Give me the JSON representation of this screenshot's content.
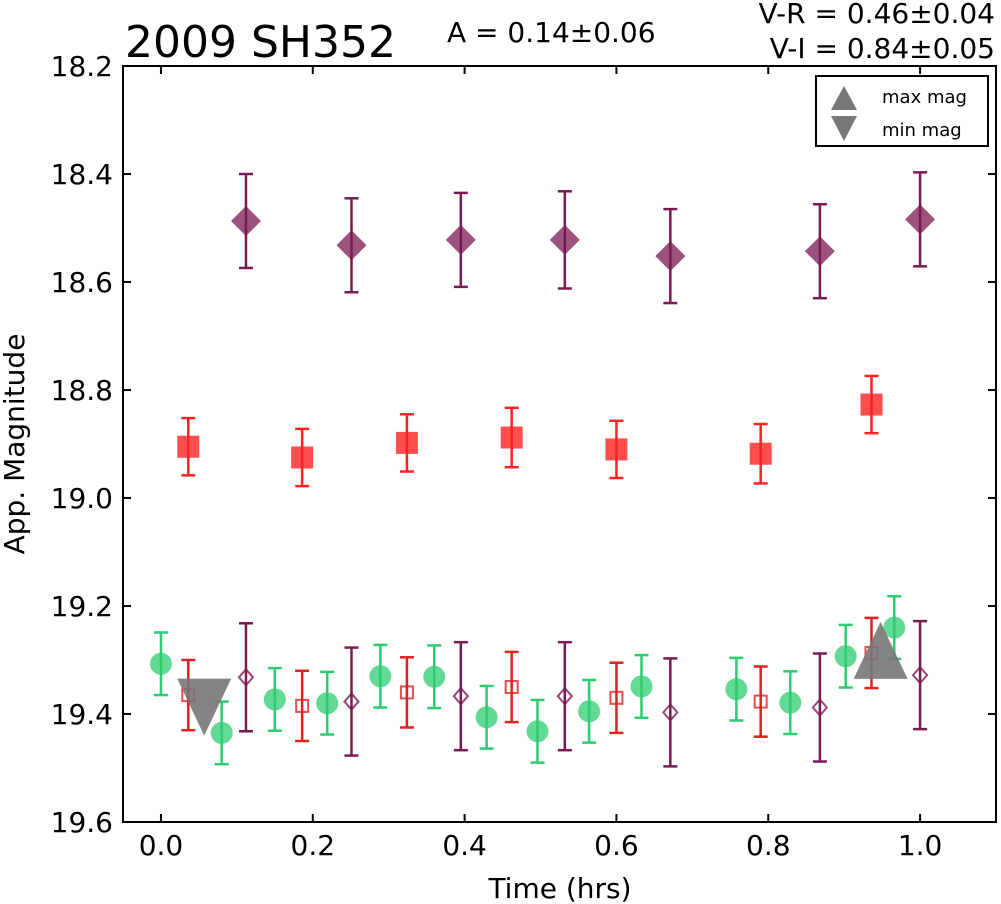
{
  "chart_data": {
    "type": "scatter",
    "title": "2009 SH352",
    "amplitude_label": "A  = 0.14±0.06",
    "color_labels": [
      "V-R = 0.46±0.04",
      "V-I  = 0.84±0.05"
    ],
    "xlabel": "Time (hrs)",
    "ylabel": "App. Magnitude",
    "xlim": [
      -0.05,
      1.1
    ],
    "ylim": [
      19.6,
      18.2
    ],
    "y_inverted": true,
    "xticks": [
      0.0,
      0.2,
      0.4,
      0.6,
      0.8,
      1.0
    ],
    "xtick_labels": [
      "0.0",
      "0.2",
      "0.4",
      "0.6",
      "0.8",
      "1.0"
    ],
    "yticks": [
      18.2,
      18.4,
      18.6,
      18.8,
      19.0,
      19.2,
      19.4,
      19.6
    ],
    "ytick_labels": [
      "18.2",
      "18.4",
      "18.6",
      "18.8",
      "19.0",
      "19.2",
      "19.4",
      "19.6"
    ],
    "grid": false,
    "legend": {
      "placement": "top-right",
      "entries": [
        {
          "label": "max mag",
          "marker": "triangle-up"
        },
        {
          "label": "min mag",
          "marker": "triangle-down"
        }
      ]
    },
    "series": [
      {
        "marker": "diamond-filled",
        "color": "#7a1a52",
        "alpha": 0.75,
        "x": [
          0.112,
          0.251,
          0.395,
          0.532,
          0.671,
          0.868,
          1.0
        ],
        "y": [
          18.487,
          18.532,
          18.522,
          18.522,
          18.552,
          18.543,
          18.484
        ],
        "err": [
          0.087,
          0.087,
          0.087,
          0.09,
          0.087,
          0.087,
          0.087
        ]
      },
      {
        "marker": "square-filled",
        "color": "#ff2222",
        "alpha": 0.8,
        "x": [
          0.036,
          0.186,
          0.324,
          0.462,
          0.6,
          0.79,
          0.936
        ],
        "y": [
          18.905,
          18.925,
          18.898,
          18.888,
          18.91,
          18.918,
          18.827
        ],
        "err": [
          0.053,
          0.053,
          0.053,
          0.055,
          0.053,
          0.055,
          0.053
        ]
      },
      {
        "marker": "circle-filled",
        "color": "#2ecc71",
        "alpha": 0.75,
        "x": [
          0.0,
          0.08,
          0.15,
          0.219,
          0.289,
          0.36,
          0.429,
          0.496,
          0.564,
          0.633,
          0.758,
          0.829,
          0.902,
          0.966
        ],
        "y": [
          19.307,
          19.435,
          19.373,
          19.38,
          19.33,
          19.331,
          19.406,
          19.432,
          19.395,
          19.349,
          19.354,
          19.379,
          19.293,
          19.24
        ],
        "err": [
          0.058,
          0.058,
          0.058,
          0.058,
          0.058,
          0.058,
          0.058,
          0.058,
          0.058,
          0.058,
          0.058,
          0.058,
          0.058,
          0.058
        ]
      },
      {
        "marker": "square-open",
        "color": "#dd2222",
        "alpha": 0.8,
        "x": [
          0.036,
          0.186,
          0.324,
          0.462,
          0.6,
          0.79,
          0.936
        ],
        "y": [
          19.365,
          19.385,
          19.36,
          19.35,
          19.37,
          19.377,
          19.287
        ],
        "err": [
          0.065,
          0.065,
          0.065,
          0.065,
          0.065,
          0.065,
          0.065
        ]
      },
      {
        "marker": "diamond-open",
        "color": "#7a1a52",
        "alpha": 0.8,
        "x": [
          0.112,
          0.251,
          0.395,
          0.532,
          0.671,
          0.868,
          1.0
        ],
        "y": [
          19.332,
          19.377,
          19.367,
          19.367,
          19.397,
          19.388,
          19.328
        ],
        "err": [
          0.1,
          0.1,
          0.1,
          0.1,
          0.1,
          0.1,
          0.1
        ]
      },
      {
        "marker": "triangle-down-large",
        "color": "#777777",
        "x": [
          0.057
        ],
        "y": [
          19.39
        ],
        "err": []
      },
      {
        "marker": "triangle-up-large",
        "color": "#777777",
        "x": [
          0.948
        ],
        "y": [
          19.285
        ],
        "err": []
      }
    ]
  }
}
